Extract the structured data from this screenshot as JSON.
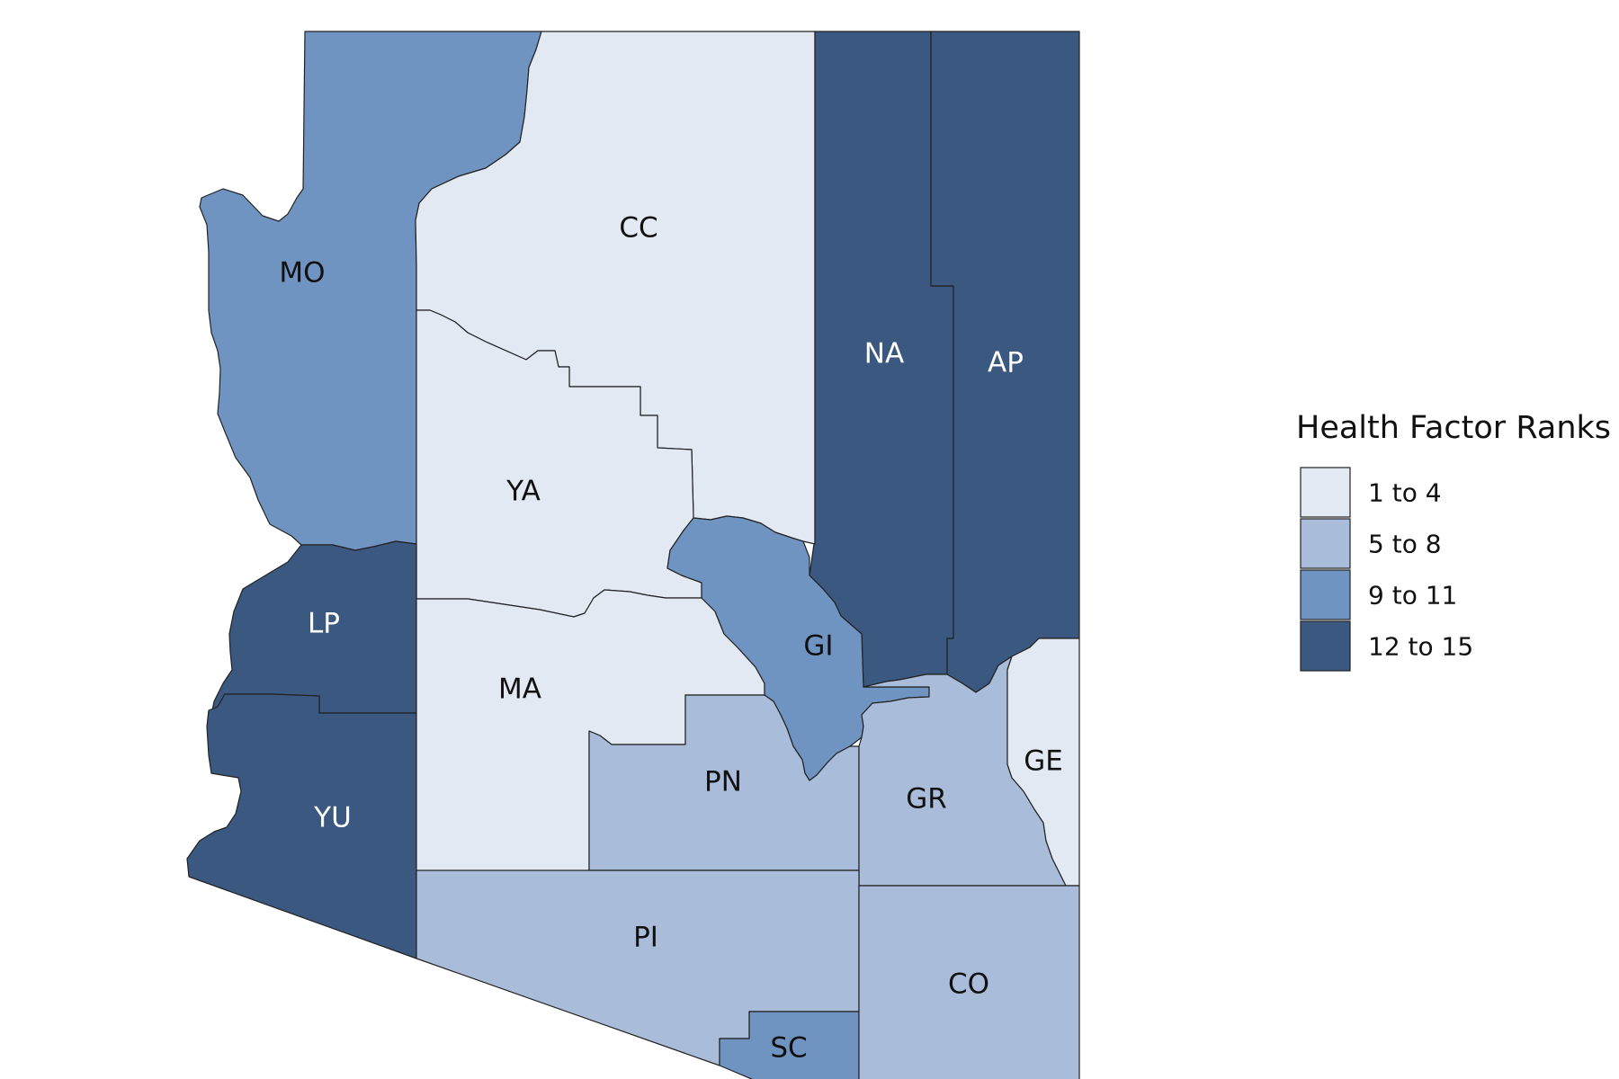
{
  "legend": {
    "title": "Health Factor Ranks",
    "classes": [
      {
        "label": "1 to 4",
        "color": "#e2e9f3"
      },
      {
        "label": "5 to 8",
        "color": "#a9bdda"
      },
      {
        "label": "9 to 11",
        "color": "#7094c2"
      },
      {
        "label": "12 to 15",
        "color": "#3a5880"
      }
    ]
  },
  "label_colors": {
    "light": "#111111",
    "dark": "#ffffff"
  },
  "counties": [
    {
      "code": "MO",
      "class": 2
    },
    {
      "code": "CC",
      "class": 0
    },
    {
      "code": "NA",
      "class": 3
    },
    {
      "code": "AP",
      "class": 3
    },
    {
      "code": "YA",
      "class": 0
    },
    {
      "code": "LP",
      "class": 3
    },
    {
      "code": "YU",
      "class": 3
    },
    {
      "code": "MA",
      "class": 0
    },
    {
      "code": "GI",
      "class": 2
    },
    {
      "code": "PN",
      "class": 1
    },
    {
      "code": "GR",
      "class": 1
    },
    {
      "code": "GE",
      "class": 0
    },
    {
      "code": "PI",
      "class": 1
    },
    {
      "code": "SC",
      "class": 2
    },
    {
      "code": "CO",
      "class": 1
    }
  ]
}
